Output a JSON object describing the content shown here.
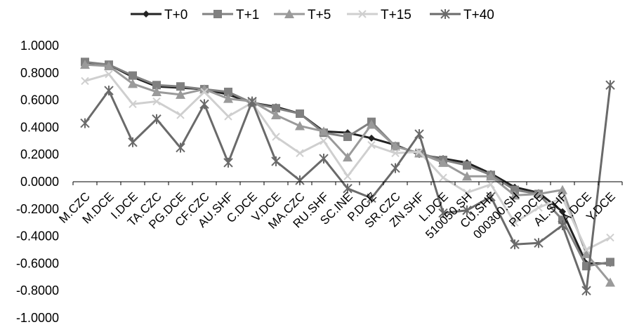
{
  "chart_data": {
    "type": "line",
    "title": "",
    "xlabel": "",
    "ylabel": "",
    "ylim": [
      -1.0,
      1.0
    ],
    "ytick_step": 0.2,
    "ytick_labels": [
      "1.0000",
      "0.8000",
      "0.6000",
      "0.4000",
      "0.2000",
      "0.0000",
      "-0.2000",
      "-0.4000",
      "-0.6000",
      "-0.8000",
      "-1.0000"
    ],
    "grid": false,
    "legend_position": "top",
    "categories": [
      "M.CZC",
      "M.DCE",
      "I.DCE",
      "TA.CZC",
      "PG.DCE",
      "CF.CZC",
      "AU.SHF",
      "C.DCE",
      "V.DCE",
      "MA.CZC",
      "RU.SHF",
      "SC.INE",
      "P.DCE",
      "SR.CZC",
      "ZN.SHF",
      "L.DCE",
      "510050.SH",
      "CU.SHF",
      "000300.SH",
      "PP.DCE",
      "AL.SHF",
      "A.DCE",
      "Y.DCE"
    ],
    "series": [
      {
        "name": "T+0",
        "color": "#222222",
        "marker": "diamond",
        "values": [
          0.87,
          0.86,
          0.77,
          0.7,
          0.69,
          0.68,
          0.64,
          0.58,
          0.55,
          0.5,
          0.37,
          0.36,
          0.32,
          0.27,
          0.2,
          0.17,
          0.14,
          0.06,
          -0.04,
          -0.08,
          -0.22,
          -0.6,
          -0.6
        ]
      },
      {
        "name": "T+1",
        "color": "#808080",
        "marker": "square",
        "values": [
          0.88,
          0.86,
          0.78,
          0.71,
          0.7,
          0.68,
          0.66,
          0.58,
          0.54,
          0.5,
          0.36,
          0.33,
          0.44,
          0.26,
          0.21,
          0.16,
          0.12,
          0.05,
          -0.06,
          -0.09,
          -0.28,
          -0.62,
          -0.59
        ]
      },
      {
        "name": "T+5",
        "color": "#9a9a9a",
        "marker": "triangle",
        "values": [
          0.86,
          0.85,
          0.72,
          0.66,
          0.64,
          0.68,
          0.61,
          0.59,
          0.49,
          0.41,
          0.37,
          0.18,
          0.42,
          0.26,
          0.21,
          0.14,
          0.04,
          0.04,
          -0.1,
          -0.09,
          -0.06,
          -0.53,
          -0.74
        ]
      },
      {
        "name": "T+15",
        "color": "#cfcfcf",
        "marker": "cross",
        "values": [
          0.74,
          0.79,
          0.57,
          0.59,
          0.49,
          0.66,
          0.48,
          0.58,
          0.33,
          0.21,
          0.3,
          0.04,
          0.27,
          0.21,
          0.22,
          0.03,
          -0.08,
          -0.02,
          -0.3,
          -0.19,
          -0.12,
          -0.5,
          -0.41
        ]
      },
      {
        "name": "T+40",
        "color": "#6a6a6a",
        "marker": "asterisk",
        "values": [
          0.43,
          0.67,
          0.29,
          0.46,
          0.25,
          0.57,
          0.14,
          0.59,
          0.15,
          0.01,
          0.17,
          -0.05,
          -0.12,
          0.1,
          0.35,
          -0.23,
          -0.21,
          -0.11,
          -0.46,
          -0.45,
          -0.32,
          -0.8,
          0.71
        ]
      }
    ]
  }
}
